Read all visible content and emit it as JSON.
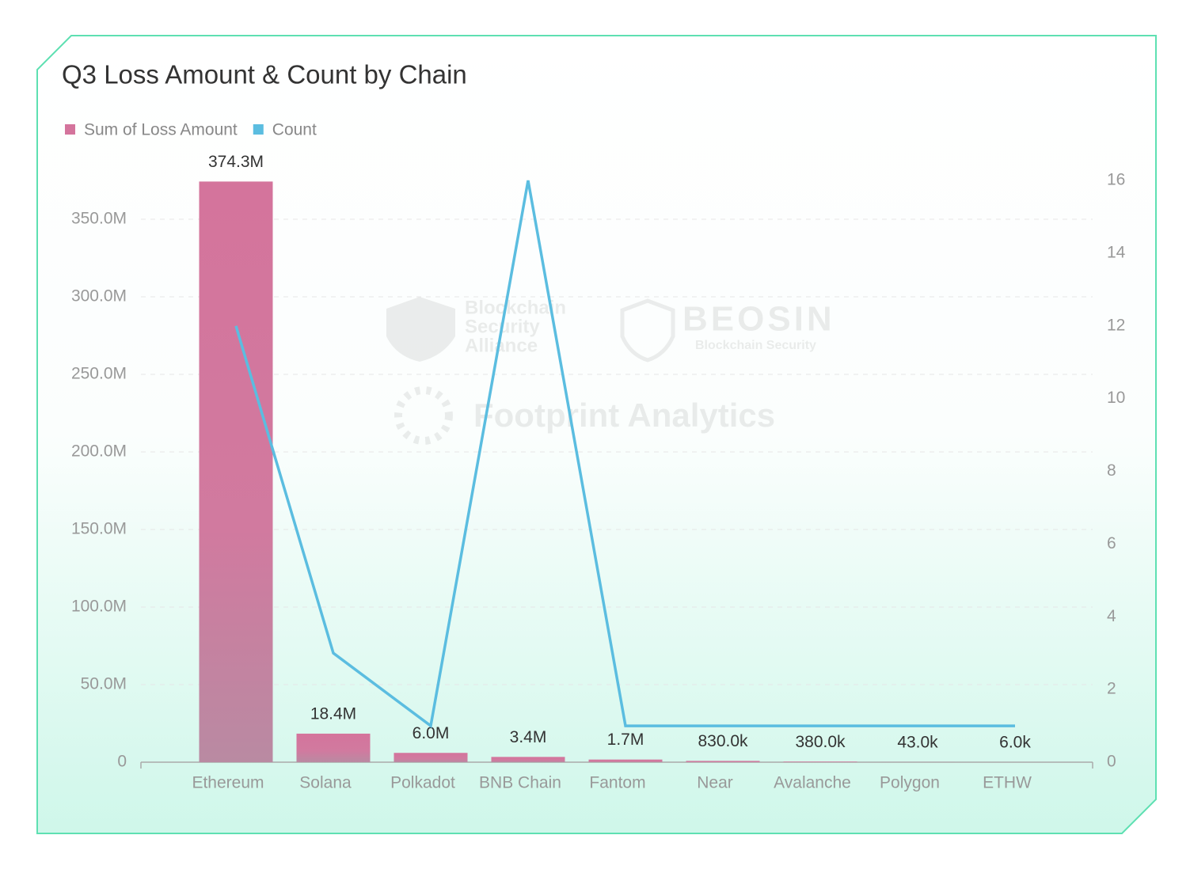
{
  "chart_data": {
    "type": "combo",
    "title": "Q3 Loss Amount & Count by Chain",
    "categories": [
      "Ethereum",
      "Solana",
      "Polkadot",
      "BNB Chain",
      "Fantom",
      "Near",
      "Avalanche",
      "Polygon",
      "ETHW"
    ],
    "series": [
      {
        "name": "Sum of Loss Amount",
        "type": "bar",
        "color": "#d4749c",
        "values": [
          374300000,
          18400000,
          6000000,
          3400000,
          1700000,
          830000,
          380000,
          43000,
          6000
        ],
        "value_labels": [
          "374.3M",
          "18.4M",
          "6.0M",
          "3.4M",
          "1.7M",
          "830.0k",
          "380.0k",
          "43.0k",
          "6.0k"
        ]
      },
      {
        "name": "Count",
        "type": "line",
        "axis": "y2",
        "color": "#5bbde0",
        "values": [
          12,
          3,
          1,
          16,
          1,
          1,
          1,
          1,
          1
        ]
      }
    ],
    "ylim": [
      0,
      375000000
    ],
    "yticks": [
      0,
      {
        "value": 50000000,
        "label": "50.0M"
      },
      {
        "value": 100000000,
        "label": "100.0M"
      },
      {
        "value": 150000000,
        "label": "150.0M"
      },
      {
        "value": 200000000,
        "label": "200.0M"
      },
      {
        "value": 250000000,
        "label": "250.0M"
      },
      {
        "value": 300000000,
        "label": "300.0M"
      },
      {
        "value": 350000000,
        "label": "350.0M"
      }
    ],
    "y2lim": [
      0,
      16
    ],
    "y2ticks": [
      0,
      2,
      4,
      6,
      8,
      10,
      12,
      14,
      16
    ],
    "grid": true,
    "legend": "top-left"
  },
  "watermarks": {
    "alliance": [
      "Blockchain",
      "Security",
      "Alliance"
    ],
    "beosin": "BEOSIN",
    "beosin_sub": "Blockchain Security",
    "footprint": "Footprint Analytics"
  }
}
